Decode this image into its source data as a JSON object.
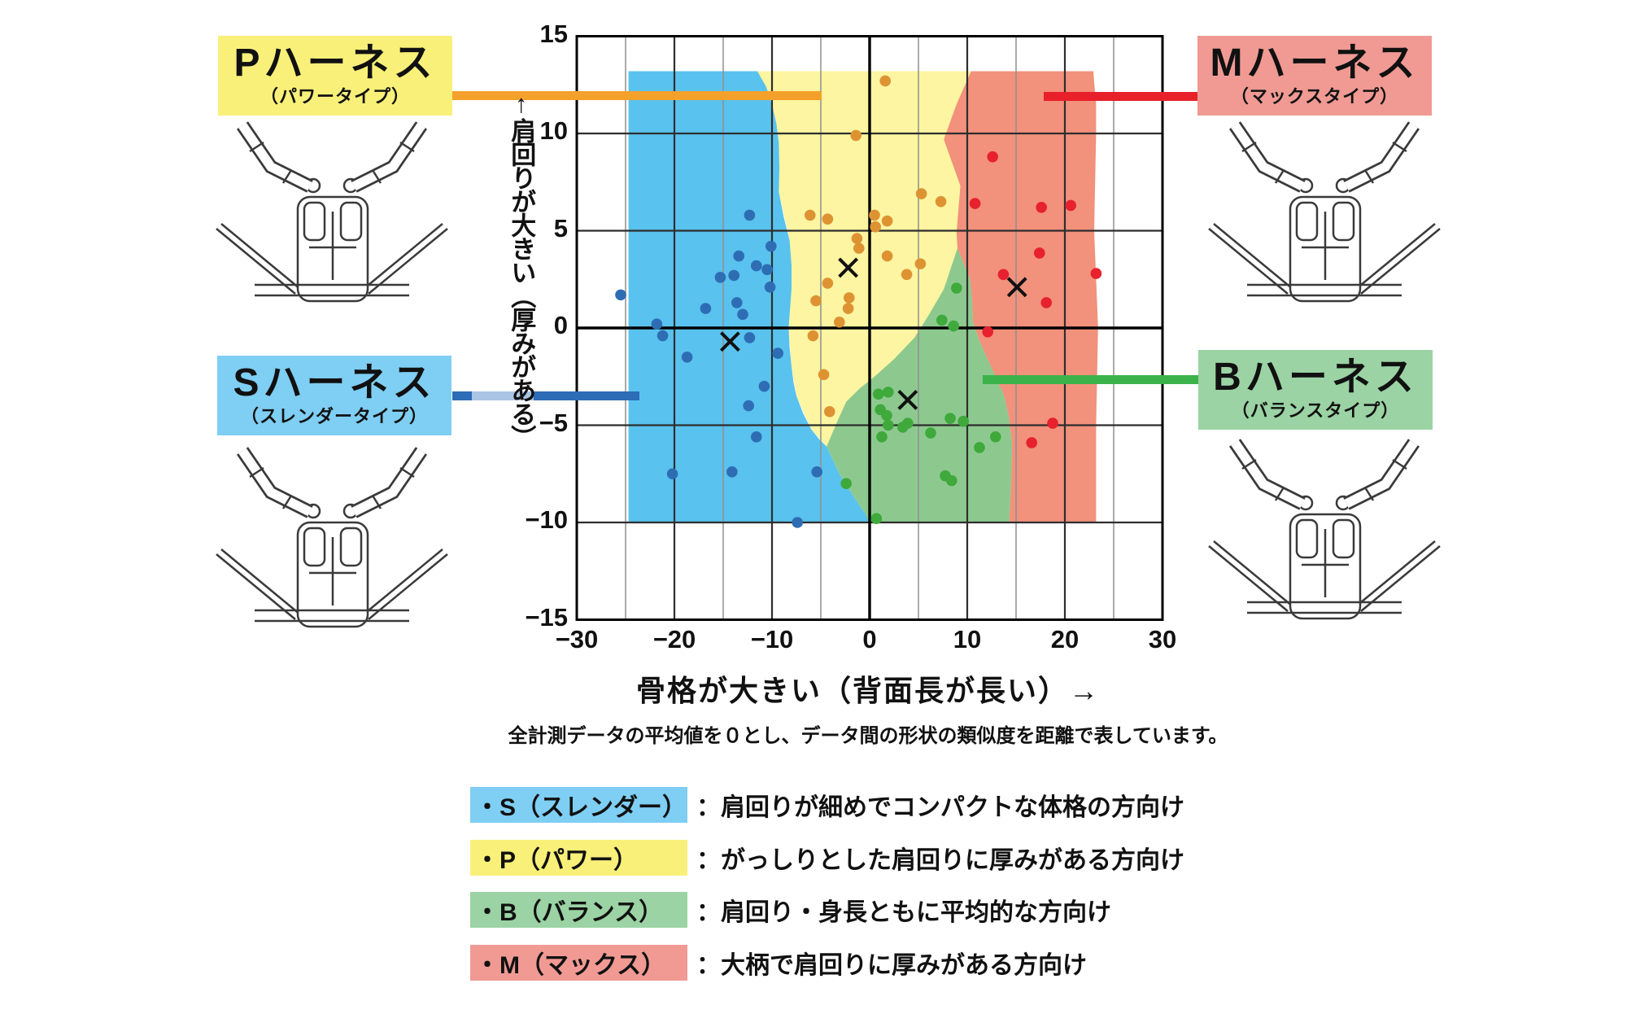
{
  "chart_data": {
    "type": "scatter",
    "xlabel": "骨格が大きい（背面長が長い）→",
    "ylabel": "↑肩回りが大きい（厚みがある）",
    "note": "全計測データの平均値を０とし、データ間の形状の類似度を距離で表しています。",
    "xlim": [
      -30,
      30
    ],
    "ylim": [
      -15,
      15
    ],
    "x_ticks": [
      "−30",
      "−20",
      "−10",
      "0",
      "10",
      "20",
      "30"
    ],
    "y_ticks": [
      "15",
      "10",
      "5",
      "0",
      "−5",
      "−10",
      "−15"
    ],
    "grid": "on",
    "grid_step_x": 5,
    "grid_step_y": 5,
    "series": [
      {
        "id": "S",
        "name": "Sハーネス（スレンダータイプ）",
        "dot_color": "#2e6db4",
        "region_color": "#59c2ee",
        "points": [
          [
            -25.5,
            1.7
          ],
          [
            -12.3,
            5.8
          ],
          [
            -13.4,
            3.7
          ],
          [
            -11.6,
            3.2
          ],
          [
            -15.3,
            2.6
          ],
          [
            -10.1,
            4.2
          ],
          [
            -10.5,
            3.0
          ],
          [
            -10.2,
            2.1
          ],
          [
            -13.9,
            2.7
          ],
          [
            -16.8,
            1.0
          ],
          [
            -21.8,
            0.2
          ],
          [
            -13.6,
            1.3
          ],
          [
            -13.0,
            0.7
          ],
          [
            -21.2,
            -0.4
          ],
          [
            -12.3,
            -0.5
          ],
          [
            -18.7,
            -1.5
          ],
          [
            -9.4,
            -1.3
          ],
          [
            -10.8,
            -3.0
          ],
          [
            -12.4,
            -4.0
          ],
          [
            -11.6,
            -5.6
          ],
          [
            -20.2,
            -7.5
          ],
          [
            -14.1,
            -7.4
          ],
          [
            -5.4,
            -7.4
          ],
          [
            -7.4,
            -10.0
          ]
        ],
        "mean": [
          -14.3,
          -0.7
        ]
      },
      {
        "id": "P",
        "name": "Pハーネス（パワータイプ）",
        "dot_color": "#de9333",
        "region_color": "#fdf5a1",
        "points": [
          [
            1.6,
            12.7
          ],
          [
            -1.4,
            9.9
          ],
          [
            -6.1,
            5.8
          ],
          [
            -4.3,
            5.6
          ],
          [
            0.5,
            5.8
          ],
          [
            0.6,
            5.2
          ],
          [
            1.8,
            5.5
          ],
          [
            5.3,
            6.9
          ],
          [
            7.3,
            6.5
          ],
          [
            -1.3,
            4.6
          ],
          [
            -1.1,
            4.1
          ],
          [
            1.8,
            3.7
          ],
          [
            5.2,
            3.3
          ],
          [
            3.8,
            2.75
          ],
          [
            -4.3,
            2.3
          ],
          [
            -2.1,
            1.55
          ],
          [
            -2.2,
            1.0
          ],
          [
            -5.5,
            1.4
          ],
          [
            -3.1,
            0.3
          ],
          [
            -5.8,
            -0.4
          ],
          [
            -4.7,
            -2.4
          ],
          [
            -4.1,
            -4.3
          ]
        ],
        "mean": [
          -2.2,
          3.1
        ]
      },
      {
        "id": "B",
        "name": "Bハーネス（バランスタイプ）",
        "dot_color": "#3fa93c",
        "region_color": "#8dc98f",
        "points": [
          [
            8.9,
            2.05
          ],
          [
            7.4,
            0.4
          ],
          [
            8.6,
            0.1
          ],
          [
            0.9,
            -3.4
          ],
          [
            1.9,
            -3.3
          ],
          [
            1.1,
            -4.2
          ],
          [
            1.75,
            -4.5
          ],
          [
            1.25,
            -5.6
          ],
          [
            1.9,
            -5.0
          ],
          [
            3.4,
            -5.1
          ],
          [
            3.9,
            -4.9
          ],
          [
            6.25,
            -5.4
          ],
          [
            8.25,
            -4.65
          ],
          [
            9.6,
            -4.8
          ],
          [
            11.25,
            -6.15
          ],
          [
            12.9,
            -5.6
          ],
          [
            7.75,
            -7.6
          ],
          [
            8.4,
            -7.85
          ],
          [
            -2.4,
            -8.0
          ],
          [
            0.7,
            -9.8
          ]
        ],
        "mean": [
          3.9,
          -3.7
        ]
      },
      {
        "id": "M",
        "name": "Mハーネス（マックスタイプ）",
        "dot_color": "#e7212e",
        "region_color": "#f2917c",
        "points": [
          [
            12.6,
            8.8
          ],
          [
            10.8,
            6.4
          ],
          [
            17.6,
            6.2
          ],
          [
            20.6,
            6.3
          ],
          [
            17.4,
            3.85
          ],
          [
            13.7,
            2.75
          ],
          [
            18.1,
            1.3
          ],
          [
            23.2,
            2.8
          ],
          [
            12.1,
            -0.2
          ],
          [
            18.75,
            -4.9
          ],
          [
            16.6,
            -5.9
          ]
        ],
        "mean": [
          15.1,
          2.1
        ]
      }
    ],
    "regions": {
      "P": [
        [
          -11.5,
          13.2
        ],
        [
          23,
          13.2
        ],
        [
          23,
          -10
        ],
        [
          0,
          -10
        ],
        [
          -4.4,
          -6.1
        ],
        [
          -6,
          -5.2
        ],
        [
          -7.5,
          -3.5
        ],
        [
          -8,
          -2
        ],
        [
          -8.3,
          0
        ],
        [
          -8,
          2
        ],
        [
          -8.2,
          4.5
        ],
        [
          -9.3,
          7
        ],
        [
          -9.3,
          9.5
        ],
        [
          -10,
          11.5
        ]
      ],
      "S": [
        [
          -24.7,
          13.2
        ],
        [
          -11.5,
          13.2
        ],
        [
          -10.6,
          12.4
        ],
        [
          -10,
          11.5
        ],
        [
          -9.55,
          10.5
        ],
        [
          -9.3,
          9.5
        ],
        [
          -9.25,
          8.2
        ],
        [
          -9.3,
          7
        ],
        [
          -8.8,
          5.7
        ],
        [
          -8.2,
          4.5
        ],
        [
          -8,
          3.2
        ],
        [
          -8,
          2
        ],
        [
          -8.15,
          1
        ],
        [
          -8.3,
          0
        ],
        [
          -8.2,
          -1
        ],
        [
          -8,
          -2
        ],
        [
          -7.8,
          -2.8
        ],
        [
          -7.5,
          -3.5
        ],
        [
          -6.8,
          -4.4
        ],
        [
          -6,
          -5.2
        ],
        [
          -5.2,
          -5.7
        ],
        [
          -4.4,
          -6.1
        ],
        [
          -3.7,
          -6.85
        ],
        [
          -3,
          -7.6
        ],
        [
          -2.1,
          -8.3
        ],
        [
          -1.2,
          -9
        ],
        [
          -0.5,
          -9.5
        ],
        [
          0.2,
          -10
        ],
        [
          -24.7,
          -10
        ]
      ],
      "B": [
        [
          9,
          4.1
        ],
        [
          9.65,
          3.3
        ],
        [
          10.3,
          2.5
        ],
        [
          10.5,
          1.4
        ],
        [
          10.6,
          0.3
        ],
        [
          11.2,
          -0.6
        ],
        [
          12,
          -1.5
        ],
        [
          12.9,
          -2.5
        ],
        [
          13.8,
          -3.5
        ],
        [
          14.3,
          -4.7
        ],
        [
          14.6,
          -6
        ],
        [
          14.5,
          -8
        ],
        [
          14.3,
          -10
        ],
        [
          0,
          -10
        ],
        [
          -0.5,
          -9.5
        ],
        [
          -1.2,
          -9
        ],
        [
          -2.1,
          -8.3
        ],
        [
          -3,
          -7.6
        ],
        [
          -3.7,
          -6.85
        ],
        [
          -4.4,
          -6.1
        ],
        [
          -3.4,
          -4.9
        ],
        [
          -2.4,
          -3.8
        ],
        [
          -1,
          -3.1
        ],
        [
          0.5,
          -2.5
        ],
        [
          2.5,
          -1.6
        ],
        [
          4.6,
          -0.5
        ],
        [
          6.1,
          0.7
        ],
        [
          7.6,
          2
        ],
        [
          8.3,
          3.05
        ]
      ],
      "M": [
        [
          10.4,
          13.2
        ],
        [
          22.9,
          13.2
        ],
        [
          23.2,
          11.5
        ],
        [
          23.2,
          10
        ],
        [
          23.1,
          7.5
        ],
        [
          23,
          5
        ],
        [
          23.2,
          2.5
        ],
        [
          23.4,
          0
        ],
        [
          23.3,
          -2.5
        ],
        [
          23.2,
          -5
        ],
        [
          23.2,
          -7.5
        ],
        [
          23.2,
          -10
        ],
        [
          14.3,
          -10
        ],
        [
          14.5,
          -8
        ],
        [
          14.6,
          -6
        ],
        [
          14.3,
          -4.7
        ],
        [
          13.8,
          -3.5
        ],
        [
          12.9,
          -2.5
        ],
        [
          12,
          -1.5
        ],
        [
          11.2,
          -0.6
        ],
        [
          10.6,
          0.3
        ],
        [
          10.5,
          1.4
        ],
        [
          10.3,
          2.5
        ],
        [
          9.65,
          3.3
        ],
        [
          9,
          4.1
        ],
        [
          8.95,
          4.5
        ],
        [
          8.9,
          4.9
        ],
        [
          9.1,
          6.1
        ],
        [
          9.3,
          7.3
        ],
        [
          8.45,
          8.5
        ],
        [
          7.6,
          9.7
        ],
        [
          8.25,
          10.6
        ],
        [
          8.9,
          11.5
        ],
        [
          9.65,
          12.35
        ]
      ]
    }
  },
  "type_labels": {
    "P": {
      "title": "Pハーネス",
      "subtitle": "（パワータイプ）",
      "bg": "#f9f07a",
      "line_color": "#f3a12b"
    },
    "M": {
      "title": "Mハーネス",
      "subtitle": "（マックスタイプ）",
      "bg": "#f09a93",
      "line_color": "#e8202a"
    },
    "S": {
      "title": "Sハーネス",
      "subtitle": "（スレンダータイプ）",
      "bg": "#7fcef3",
      "line_color": "#2d6cb7"
    },
    "B": {
      "title": "Bハーネス",
      "subtitle": "（バランスタイプ）",
      "bg": "#9bd3a4",
      "line_color": "#3bb34a"
    }
  },
  "legend": {
    "rows": [
      {
        "id": "S",
        "key": "・S（スレンダー）",
        "bg": "#7fcef3",
        "desc": "：肩回りが細めでコンパクトな体格の方向け"
      },
      {
        "id": "P",
        "key": "・P（パワー）",
        "bg": "#f9f07a",
        "desc": "：がっしりとした肩回りに厚みがある方向け"
      },
      {
        "id": "B",
        "key": "・B（バランス）",
        "bg": "#9bd3a4",
        "desc": "：肩回り・身長ともに平均的な方向け"
      },
      {
        "id": "M",
        "key": "・M（マックス）",
        "bg": "#f09a93",
        "desc": "：大柄で肩回りに厚みがある方向け"
      }
    ]
  }
}
